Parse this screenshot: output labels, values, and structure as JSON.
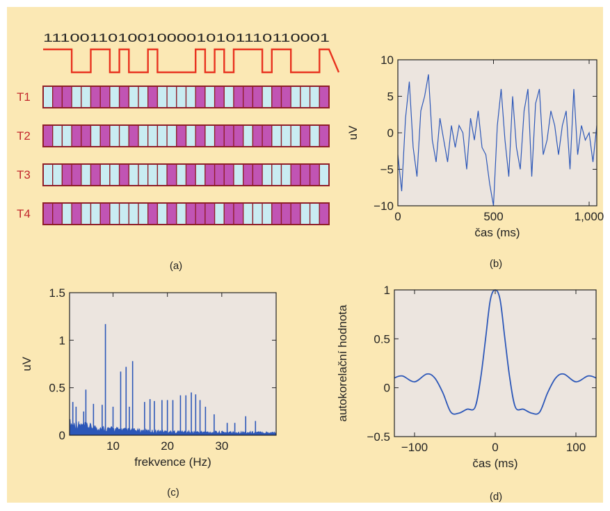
{
  "colors": {
    "background": "#fbe8b4",
    "plot_bg": "#ece5df",
    "signal": "#e8321e",
    "cell_on": "#c154b4",
    "cell_off": "#c9ecf2",
    "cell_border": "#8e1d27",
    "line_blue": "#2c57b8",
    "track_label": "#c2272d"
  },
  "panels": {
    "a": {
      "label": "(a)"
    },
    "b": {
      "label": "(b)"
    },
    "c": {
      "label": "(c)"
    },
    "d": {
      "label": "(d)"
    }
  },
  "chart_data": [
    {
      "id": "a",
      "type": "diagram",
      "bit_sequence": "111001101001000010101110110001",
      "tracks": [
        {
          "name": "T1",
          "cells": "011001101001000010101110110001"
        },
        {
          "name": "T2",
          "cells": "100110100100001010111011000101"
        },
        {
          "name": "T3",
          "cells": "001101001000010101110110001110"
        },
        {
          "name": "T4",
          "cells": "110100100001010111011000111001"
        }
      ]
    },
    {
      "id": "b",
      "type": "line",
      "xlabel": "čas (ms)",
      "ylabel": "uV",
      "xlim": [
        0,
        1040
      ],
      "ylim": [
        -10,
        10
      ],
      "xticks": [
        0,
        500,
        1000
      ],
      "xtick_labels": [
        "0",
        "500",
        "1,000"
      ],
      "yticks": [
        -10,
        -5,
        0,
        5,
        10
      ],
      "ytick_labels": [
        "−10",
        "−5",
        "0",
        "5",
        "10"
      ],
      "x": [
        0,
        20,
        40,
        60,
        80,
        100,
        120,
        140,
        160,
        180,
        200,
        220,
        240,
        260,
        280,
        300,
        320,
        340,
        360,
        380,
        400,
        420,
        440,
        460,
        480,
        500,
        520,
        540,
        560,
        580,
        600,
        620,
        640,
        660,
        680,
        700,
        720,
        740,
        760,
        780,
        800,
        820,
        840,
        860,
        880,
        900,
        920,
        940,
        960,
        980,
        1000,
        1020,
        1040
      ],
      "y": [
        -3,
        -8,
        2,
        7,
        -2,
        -6,
        3,
        5,
        8,
        -1,
        -4,
        2,
        -1,
        -4,
        1,
        -2,
        1,
        0,
        -5,
        2,
        -1,
        3,
        -2,
        -3,
        -7,
        -10,
        1,
        6,
        -1,
        -6,
        5,
        -2,
        -5,
        3,
        6,
        -6,
        4,
        6,
        -3,
        -1,
        3,
        1,
        -3,
        1,
        3,
        -5,
        6,
        -3,
        1,
        -1,
        0,
        -4,
        1
      ]
    },
    {
      "id": "c",
      "type": "line",
      "xlabel": "frekvence (Hz)",
      "ylabel": "uV",
      "xlim": [
        2,
        40
      ],
      "ylim": [
        0,
        1.5
      ],
      "xticks": [
        10,
        20,
        30
      ],
      "xtick_labels": [
        "10",
        "20",
        "30"
      ],
      "yticks": [
        0,
        0.5,
        1,
        1.5
      ],
      "ytick_labels": [
        "0",
        "0.5",
        "1",
        "1.5"
      ],
      "peaks": [
        {
          "x": 2.6,
          "y": 0.35
        },
        {
          "x": 3.2,
          "y": 0.3
        },
        {
          "x": 4.6,
          "y": 0.25
        },
        {
          "x": 5.0,
          "y": 0.48
        },
        {
          "x": 6.4,
          "y": 0.33
        },
        {
          "x": 8.0,
          "y": 0.32
        },
        {
          "x": 8.6,
          "y": 1.17
        },
        {
          "x": 10.0,
          "y": 0.3
        },
        {
          "x": 11.4,
          "y": 0.67
        },
        {
          "x": 12.4,
          "y": 0.72
        },
        {
          "x": 13.0,
          "y": 0.3
        },
        {
          "x": 13.6,
          "y": 0.78
        },
        {
          "x": 15.8,
          "y": 0.35
        },
        {
          "x": 16.8,
          "y": 0.38
        },
        {
          "x": 17.6,
          "y": 0.36
        },
        {
          "x": 19.0,
          "y": 0.37
        },
        {
          "x": 20.0,
          "y": 0.37
        },
        {
          "x": 21.0,
          "y": 0.37
        },
        {
          "x": 22.4,
          "y": 0.42
        },
        {
          "x": 23.4,
          "y": 0.42
        },
        {
          "x": 24.4,
          "y": 0.45
        },
        {
          "x": 25.2,
          "y": 0.43
        },
        {
          "x": 26.0,
          "y": 0.37
        },
        {
          "x": 27.0,
          "y": 0.3
        },
        {
          "x": 28.6,
          "y": 0.22
        },
        {
          "x": 31.0,
          "y": 0.13
        },
        {
          "x": 32.4,
          "y": 0.13
        },
        {
          "x": 34.4,
          "y": 0.2
        },
        {
          "x": 36.2,
          "y": 0.15
        }
      ]
    },
    {
      "id": "d",
      "type": "line",
      "xlabel": "čas (ms)",
      "ylabel": "autokorelační hodnota",
      "xlim": [
        -125,
        125
      ],
      "ylim": [
        -0.5,
        1
      ],
      "xticks": [
        -100,
        0,
        100
      ],
      "xtick_labels": [
        "−100",
        "0",
        "100"
      ],
      "yticks": [
        -0.5,
        0,
        0.5,
        1
      ],
      "ytick_labels": [
        "−0.5",
        "0",
        "0.5",
        "1"
      ],
      "x": [
        -125,
        -115,
        -100,
        -85,
        -75,
        -65,
        -55,
        -45,
        -35,
        -25,
        -18,
        -12,
        -6,
        0,
        6,
        12,
        18,
        25,
        35,
        45,
        55,
        65,
        75,
        85,
        100,
        115,
        125
      ],
      "y": [
        0.1,
        0.12,
        0.06,
        0.14,
        0.1,
        -0.05,
        -0.25,
        -0.26,
        -0.22,
        -0.2,
        0.1,
        0.5,
        0.9,
        1.0,
        0.9,
        0.5,
        0.1,
        -0.2,
        -0.22,
        -0.26,
        -0.25,
        -0.05,
        0.1,
        0.14,
        0.06,
        0.12,
        0.1
      ]
    }
  ]
}
